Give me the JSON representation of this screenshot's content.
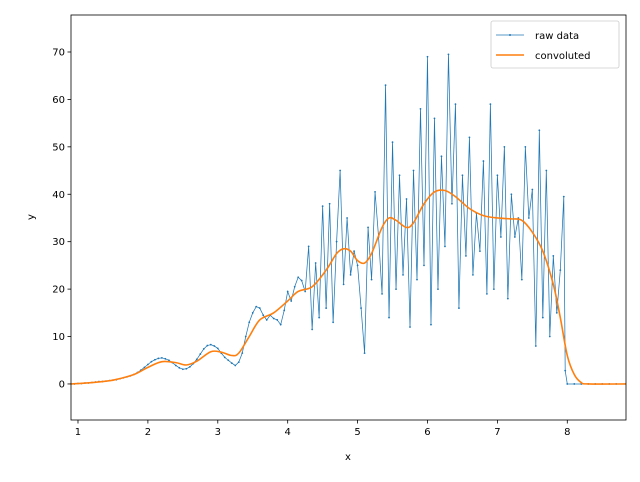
{
  "chart_data": {
    "type": "line",
    "title": "",
    "xlabel": "x",
    "ylabel": "y",
    "xlim": [
      0.9,
      8.84
    ],
    "ylim": [
      -7.6,
      77.8
    ],
    "xticks": [
      1,
      2,
      3,
      4,
      5,
      6,
      7,
      8
    ],
    "yticks": [
      0,
      10,
      20,
      30,
      40,
      50,
      60,
      70
    ],
    "grid": false,
    "legend_position": "top-right",
    "series": [
      {
        "name": "raw data",
        "color": "#1f77b4",
        "style": "thin line with small point markers",
        "x": [
          0.9,
          0.95,
          1.0,
          1.05,
          1.1,
          1.15,
          1.2,
          1.25,
          1.3,
          1.35,
          1.4,
          1.45,
          1.5,
          1.55,
          1.6,
          1.65,
          1.7,
          1.75,
          1.8,
          1.85,
          1.9,
          1.95,
          2.0,
          2.05,
          2.1,
          2.15,
          2.2,
          2.25,
          2.3,
          2.35,
          2.4,
          2.45,
          2.5,
          2.55,
          2.6,
          2.65,
          2.7,
          2.75,
          2.8,
          2.85,
          2.9,
          2.95,
          3.0,
          3.05,
          3.1,
          3.15,
          3.2,
          3.25,
          3.3,
          3.35,
          3.4,
          3.45,
          3.5,
          3.55,
          3.6,
          3.65,
          3.7,
          3.75,
          3.8,
          3.85,
          3.9,
          3.95,
          4.0,
          4.05,
          4.1,
          4.15,
          4.2,
          4.25,
          4.3,
          4.35,
          4.4,
          4.45,
          4.5,
          4.55,
          4.6,
          4.65,
          4.7,
          4.75,
          4.8,
          4.85,
          4.9,
          4.95,
          5.0,
          5.05,
          5.1,
          5.15,
          5.2,
          5.25,
          5.3,
          5.35,
          5.4,
          5.45,
          5.5,
          5.55,
          5.6,
          5.65,
          5.7,
          5.75,
          5.8,
          5.85,
          5.9,
          5.95,
          6.0,
          6.05,
          6.1,
          6.15,
          6.2,
          6.25,
          6.3,
          6.35,
          6.4,
          6.45,
          6.5,
          6.55,
          6.6,
          6.65,
          6.7,
          6.75,
          6.8,
          6.85,
          6.9,
          6.95,
          7.0,
          7.05,
          7.1,
          7.15,
          7.2,
          7.25,
          7.3,
          7.35,
          7.4,
          7.45,
          7.5,
          7.55,
          7.6,
          7.65,
          7.7,
          7.75,
          7.8,
          7.85,
          7.9,
          7.95,
          7.97,
          8.0,
          8.1,
          8.2,
          8.3,
          8.4,
          8.5,
          8.6,
          8.7,
          8.84
        ],
        "y": [
          0,
          0,
          0.1,
          0.1,
          0.2,
          0.2,
          0.3,
          0.4,
          0.5,
          0.5,
          0.6,
          0.7,
          0.8,
          0.9,
          1.1,
          1.3,
          1.5,
          1.7,
          2.0,
          2.4,
          2.9,
          3.5,
          4.1,
          4.7,
          5.1,
          5.4,
          5.5,
          5.3,
          5.0,
          4.5,
          3.9,
          3.4,
          3.1,
          3.2,
          3.6,
          4.3,
          5.2,
          6.3,
          7.4,
          8.1,
          8.3,
          8.0,
          7.5,
          6.5,
          5.6,
          5.0,
          4.4,
          3.9,
          4.6,
          6.5,
          10.0,
          13.0,
          15.0,
          16.3,
          16.0,
          14.5,
          13.5,
          14.5,
          13.8,
          13.5,
          12.5,
          15.5,
          19.5,
          17.5,
          20.5,
          22.5,
          21.8,
          19.5,
          29,
          11.5,
          25.5,
          14,
          37.5,
          16,
          38,
          13,
          30,
          45,
          21,
          35,
          23,
          28,
          25,
          16,
          6.5,
          33,
          22,
          40.5,
          31,
          19,
          63,
          14,
          51,
          20,
          44,
          23,
          39,
          12,
          45,
          22,
          58,
          25,
          69,
          12.5,
          56,
          20,
          48,
          29,
          69.5,
          38,
          59,
          16,
          44,
          27,
          52,
          23,
          36,
          28,
          47,
          19,
          59,
          20,
          44,
          31,
          50,
          18,
          40,
          31,
          35,
          22,
          50,
          35,
          41,
          8,
          53.5,
          14,
          45,
          10,
          27,
          15,
          24,
          39.5,
          2.8,
          0,
          0,
          0,
          0,
          0,
          0,
          0,
          0,
          0
        ]
      },
      {
        "name": "convoluted",
        "color": "#ff7f0e",
        "style": "solid line",
        "x": [
          0.9,
          1.2,
          1.5,
          1.8,
          2.0,
          2.2,
          2.4,
          2.55,
          2.7,
          2.9,
          3.05,
          3.2,
          3.3,
          3.45,
          3.6,
          3.8,
          4.0,
          4.15,
          4.35,
          4.55,
          4.7,
          4.8,
          4.9,
          5.0,
          5.1,
          5.2,
          5.35,
          5.45,
          5.55,
          5.7,
          5.8,
          5.95,
          6.1,
          6.25,
          6.4,
          6.6,
          6.8,
          7.0,
          7.2,
          7.35,
          7.5,
          7.65,
          7.8,
          7.9,
          8.0,
          8.1,
          8.2,
          8.3,
          8.84
        ],
        "y": [
          0,
          0.3,
          0.8,
          2,
          3.5,
          4.7,
          4.5,
          4.0,
          4.8,
          6.8,
          6.7,
          6.0,
          6.5,
          10,
          13.5,
          15,
          17.5,
          19.5,
          20.5,
          24,
          27.5,
          28.5,
          28,
          26,
          25.5,
          27.5,
          33,
          35,
          34.5,
          33,
          34,
          38,
          40.5,
          40.8,
          39.5,
          37,
          35.5,
          35,
          34.8,
          34.5,
          32,
          28,
          21,
          14,
          6,
          2,
          0.3,
          0,
          0
        ]
      }
    ]
  }
}
